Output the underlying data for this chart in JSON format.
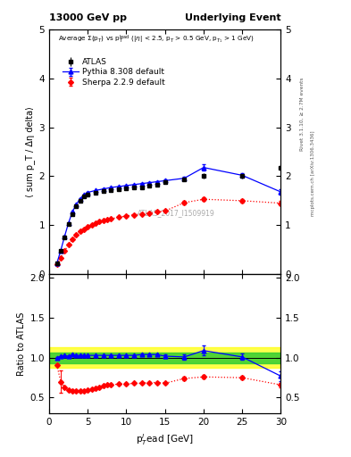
{
  "title_left": "13000 GeV pp",
  "title_right": "Underlying Event",
  "watermark": "ATLAS_2017_I1509919",
  "ylabel_main": "⟨ sum p_T / Δη delta⟩",
  "ylabel_ratio": "Ratio to ATLAS",
  "xlabel": "p_T^{l}ead [GeV]",
  "right_label_top": "Rivet 3.1.10, ≥ 2.7M events",
  "right_label_bot": "mcplots.cern.ch [arXiv:1306.3436]",
  "ylim_main": [
    0,
    5
  ],
  "ylim_ratio": [
    0.3,
    2.05
  ],
  "yticks_main": [
    0,
    1,
    2,
    3,
    4,
    5
  ],
  "yticks_ratio": [
    0.5,
    1.0,
    1.5,
    2.0
  ],
  "xlim": [
    0,
    30
  ],
  "xticks": [
    0,
    5,
    10,
    15,
    20,
    25,
    30
  ],
  "atlas_x": [
    1.0,
    1.5,
    2.0,
    2.5,
    3.0,
    3.5,
    4.0,
    4.5,
    5.0,
    6.0,
    7.0,
    8.0,
    9.0,
    10.0,
    11.0,
    12.0,
    13.0,
    14.0,
    15.0,
    17.5,
    20.0,
    25.0,
    30.0
  ],
  "atlas_y": [
    0.22,
    0.47,
    0.75,
    1.02,
    1.22,
    1.38,
    1.5,
    1.58,
    1.62,
    1.66,
    1.69,
    1.71,
    1.73,
    1.75,
    1.77,
    1.78,
    1.8,
    1.82,
    1.88,
    1.94,
    2.01,
    2.0,
    2.18
  ],
  "atlas_yerr": [
    0.01,
    0.01,
    0.01,
    0.01,
    0.01,
    0.01,
    0.01,
    0.01,
    0.01,
    0.01,
    0.01,
    0.01,
    0.01,
    0.01,
    0.01,
    0.01,
    0.01,
    0.01,
    0.03,
    0.04,
    0.05,
    0.05,
    0.06
  ],
  "pythia_x": [
    1.0,
    1.5,
    2.0,
    2.5,
    3.0,
    3.5,
    4.0,
    4.5,
    5.0,
    6.0,
    7.0,
    8.0,
    9.0,
    10.0,
    11.0,
    12.0,
    13.0,
    14.0,
    15.0,
    17.5,
    20.0,
    25.0,
    30.0
  ],
  "pythia_y": [
    0.22,
    0.48,
    0.77,
    1.04,
    1.27,
    1.42,
    1.54,
    1.62,
    1.67,
    1.71,
    1.74,
    1.77,
    1.79,
    1.81,
    1.83,
    1.85,
    1.87,
    1.89,
    1.91,
    1.96,
    2.18,
    2.02,
    1.68
  ],
  "pythia_yerr": [
    0.005,
    0.005,
    0.005,
    0.005,
    0.005,
    0.005,
    0.005,
    0.005,
    0.005,
    0.005,
    0.005,
    0.005,
    0.005,
    0.005,
    0.005,
    0.005,
    0.005,
    0.005,
    0.02,
    0.03,
    0.07,
    0.05,
    0.05
  ],
  "sherpa_x": [
    1.0,
    1.5,
    2.0,
    2.5,
    3.0,
    3.5,
    4.0,
    4.5,
    5.0,
    5.5,
    6.0,
    6.5,
    7.0,
    7.5,
    8.0,
    9.0,
    10.0,
    11.0,
    12.0,
    13.0,
    14.0,
    15.0,
    17.5,
    20.0,
    25.0,
    30.0
  ],
  "sherpa_y": [
    0.2,
    0.33,
    0.47,
    0.6,
    0.71,
    0.8,
    0.87,
    0.92,
    0.97,
    1.01,
    1.04,
    1.07,
    1.09,
    1.11,
    1.13,
    1.16,
    1.19,
    1.21,
    1.23,
    1.25,
    1.27,
    1.29,
    1.46,
    1.53,
    1.5,
    1.45
  ],
  "sherpa_yerr": [
    0.005,
    0.005,
    0.005,
    0.005,
    0.005,
    0.005,
    0.005,
    0.005,
    0.005,
    0.005,
    0.005,
    0.005,
    0.005,
    0.005,
    0.005,
    0.005,
    0.005,
    0.005,
    0.005,
    0.005,
    0.005,
    0.005,
    0.03,
    0.04,
    0.04,
    0.04
  ],
  "pythia_ratio_x": [
    1.0,
    1.5,
    2.0,
    2.5,
    3.0,
    3.5,
    4.0,
    4.5,
    5.0,
    6.0,
    7.0,
    8.0,
    9.0,
    10.0,
    11.0,
    12.0,
    13.0,
    14.0,
    15.0,
    17.5,
    20.0,
    25.0,
    30.0
  ],
  "pythia_ratio_y": [
    1.0,
    1.02,
    1.03,
    1.02,
    1.04,
    1.03,
    1.03,
    1.03,
    1.03,
    1.03,
    1.03,
    1.03,
    1.03,
    1.03,
    1.03,
    1.04,
    1.04,
    1.04,
    1.02,
    1.01,
    1.09,
    1.01,
    0.77
  ],
  "pythia_ratio_yerr": [
    0.005,
    0.005,
    0.005,
    0.005,
    0.005,
    0.005,
    0.005,
    0.005,
    0.005,
    0.005,
    0.005,
    0.005,
    0.005,
    0.005,
    0.005,
    0.005,
    0.005,
    0.005,
    0.02,
    0.03,
    0.06,
    0.04,
    0.06
  ],
  "sherpa_ratio_x": [
    1.0,
    1.5,
    2.0,
    2.5,
    3.0,
    3.5,
    4.0,
    4.5,
    5.0,
    5.5,
    6.0,
    6.5,
    7.0,
    7.5,
    8.0,
    9.0,
    10.0,
    11.0,
    12.0,
    13.0,
    14.0,
    15.0,
    17.5,
    20.0,
    25.0,
    30.0
  ],
  "sherpa_ratio_y": [
    0.91,
    0.7,
    0.63,
    0.59,
    0.58,
    0.58,
    0.58,
    0.58,
    0.59,
    0.61,
    0.62,
    0.63,
    0.65,
    0.66,
    0.66,
    0.67,
    0.67,
    0.68,
    0.68,
    0.69,
    0.69,
    0.68,
    0.74,
    0.76,
    0.75,
    0.66
  ],
  "sherpa_ratio_yerr": [
    0.01,
    0.14,
    0.01,
    0.01,
    0.01,
    0.01,
    0.01,
    0.01,
    0.01,
    0.01,
    0.01,
    0.01,
    0.01,
    0.01,
    0.01,
    0.01,
    0.01,
    0.01,
    0.01,
    0.01,
    0.01,
    0.01,
    0.025,
    0.025,
    0.025,
    0.03
  ],
  "green_band": [
    0.93,
    1.07
  ],
  "yellow_band": [
    0.87,
    1.13
  ],
  "atlas_color": "#000000",
  "pythia_color": "#0000ff",
  "sherpa_color": "#ff0000"
}
